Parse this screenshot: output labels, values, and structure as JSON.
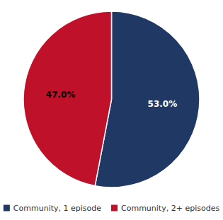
{
  "chart_data": {
    "type": "pie",
    "categories": [
      "Community, 1 episode",
      "Community, 2+ episodes"
    ],
    "values": [
      53.0,
      47.0
    ],
    "value_labels": [
      "53.0%",
      "47.0%"
    ],
    "colors": [
      "#1f3864",
      "#c0112b"
    ],
    "data_labels": true,
    "legend": "bottom"
  }
}
